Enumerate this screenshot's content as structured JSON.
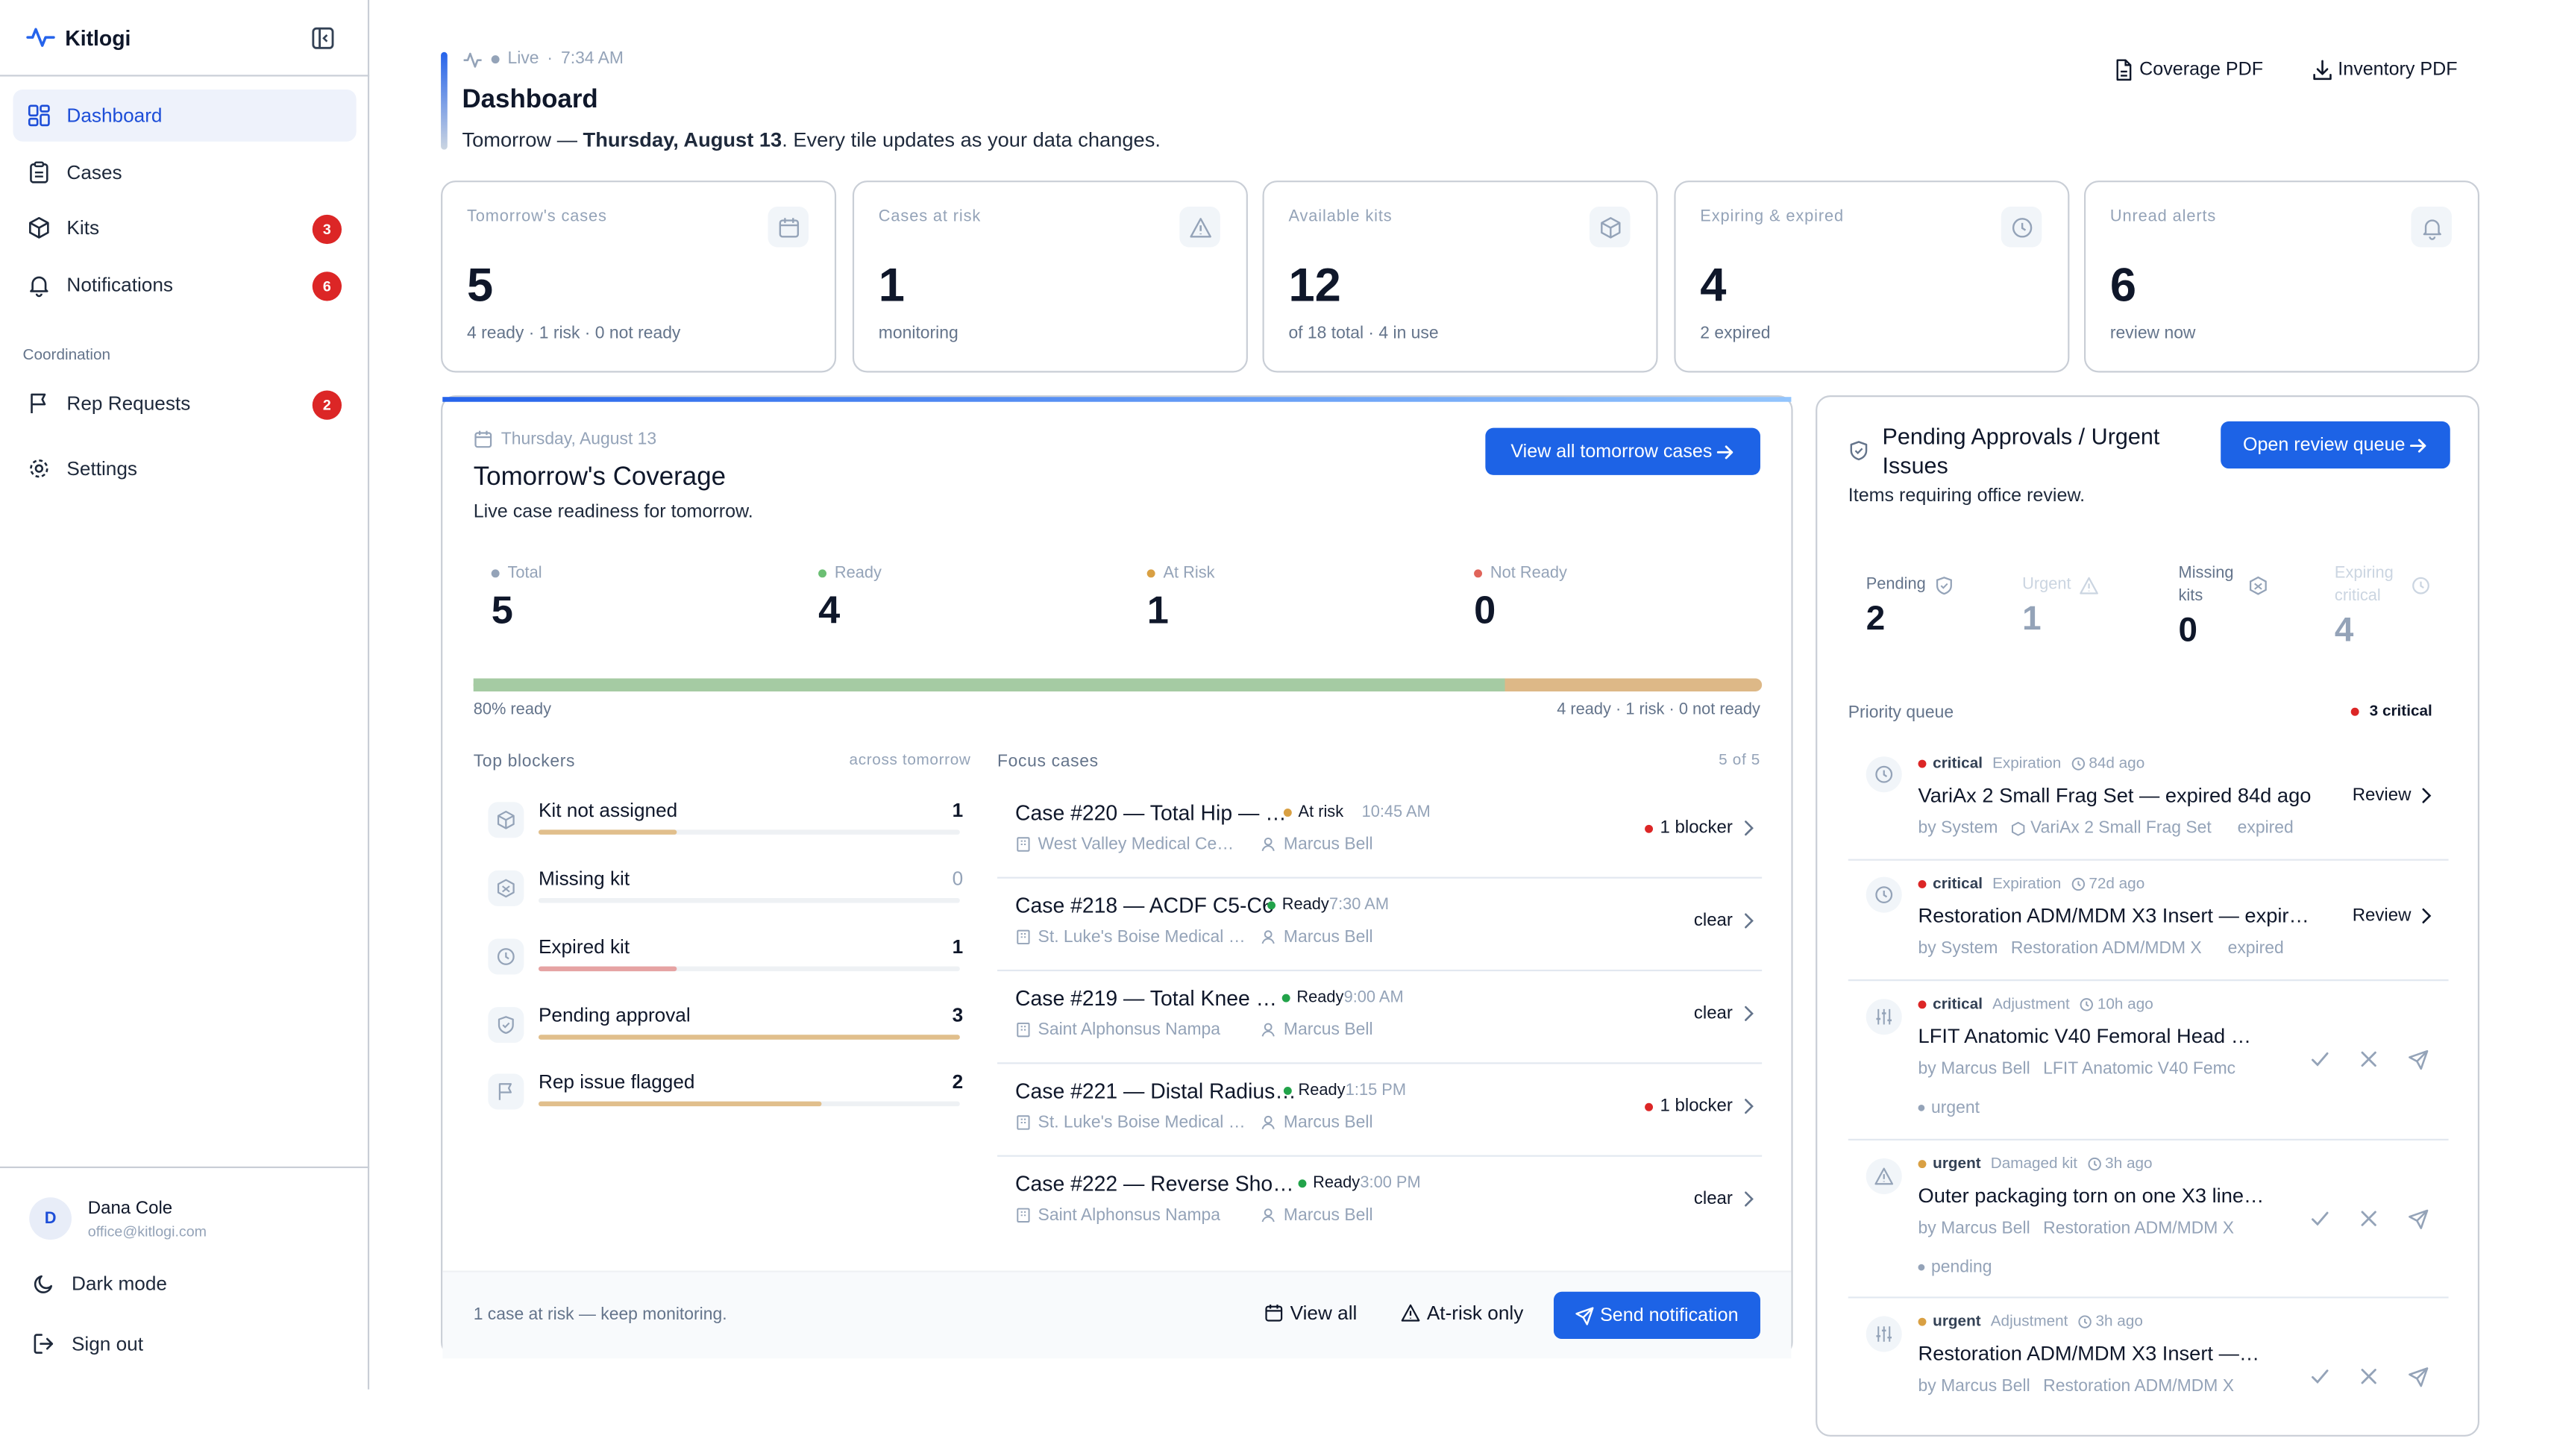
{
  "app": {
    "name": "Kitlogi"
  },
  "sidebar": {
    "items": [
      {
        "label": "Dashboard"
      },
      {
        "label": "Cases"
      },
      {
        "label": "Kits",
        "badge": "3"
      },
      {
        "label": "Notifications",
        "badge": "6"
      },
      {
        "label": "Rep Requests",
        "badge": "2"
      },
      {
        "label": "Settings"
      }
    ],
    "section": "Coordination",
    "user": {
      "initial": "D",
      "name": "Dana Cole",
      "email": "office@kitlogi.com"
    },
    "dark_mode": "Dark mode",
    "sign_out": "Sign out"
  },
  "header": {
    "live": "Live",
    "sep": "·",
    "time": "7:34 AM",
    "title": "Dashboard",
    "subtitle_lead": "Tomorrow — ",
    "subtitle_date": "Thursday, August 13",
    "subtitle_tail": ". Every tile updates as your data changes.",
    "coverage_pdf": "Coverage PDF",
    "inventory_pdf": "Inventory PDF"
  },
  "kpis": [
    {
      "label": "Tomorrow's cases",
      "value": "5",
      "sub": "4 ready · 1 risk · 0 not ready",
      "icon": "calendar-icon"
    },
    {
      "label": "Cases at risk",
      "value": "1",
      "sub": "monitoring",
      "icon": "warning-icon"
    },
    {
      "label": "Available kits",
      "value": "12",
      "sub": "of 18 total · 4 in use",
      "icon": "package-icon"
    },
    {
      "label": "Expiring & expired",
      "value": "4",
      "sub": "2 expired",
      "icon": "clock-icon"
    },
    {
      "label": "Unread alerts",
      "value": "6",
      "sub": "review now",
      "icon": "bell-icon"
    }
  ],
  "coverage": {
    "date": "Thursday, August 13",
    "title": "Tomorrow's Coverage",
    "subtitle": "Live case readiness for tomorrow.",
    "view_all": "View all tomorrow cases",
    "stats": [
      {
        "label": "Total",
        "value": "5",
        "color": "#94a3b8"
      },
      {
        "label": "Ready",
        "value": "4",
        "color": "#6bbf73"
      },
      {
        "label": "At Risk",
        "value": "1",
        "color": "#d9a043"
      },
      {
        "label": "Not Ready",
        "value": "0",
        "color": "#e0645a"
      }
    ],
    "ready_fraction": 0.8,
    "ready_label": "80% ready",
    "breakdown": "4 ready · 1 risk · 0 not ready",
    "blockers_title": "Top blockers",
    "blockers_scope": "across tomorrow",
    "blockers": [
      {
        "label": "Kit not assigned",
        "count": "1",
        "fraction": 0.33,
        "color": "#e1bf8c",
        "icon": "package-icon"
      },
      {
        "label": "Missing kit",
        "count": "0",
        "fraction": 0,
        "color": "#e1bf8c",
        "icon": "package-x-icon"
      },
      {
        "label": "Expired kit",
        "count": "1",
        "fraction": 0.33,
        "color": "#e6a3a3",
        "icon": "clock-icon"
      },
      {
        "label": "Pending approval",
        "count": "3",
        "fraction": 1,
        "color": "#e1bf8c",
        "icon": "shield-icon"
      },
      {
        "label": "Rep issue flagged",
        "count": "2",
        "fraction": 0.67,
        "color": "#e1bf8c",
        "icon": "flag-icon"
      }
    ],
    "focus_title": "Focus cases",
    "focus_count": "5 of 5",
    "cases": [
      {
        "name": "Case #220 — Total Hip — …",
        "status": "At risk",
        "status_color": "#d9a043",
        "time": "10:45 AM",
        "location": "West Valley Medical Ce…",
        "rep": "Marcus Bell",
        "right": "1 blocker",
        "blocker": true
      },
      {
        "name": "Case #218 — ACDF C5-C6",
        "status": "Ready",
        "status_color": "#22a34a",
        "time": "7:30 AM",
        "location": "St. Luke's Boise Medical …",
        "rep": "Marcus Bell",
        "right": "clear",
        "blocker": false
      },
      {
        "name": "Case #219 — Total Knee …",
        "status": "Ready",
        "status_color": "#22a34a",
        "time": "9:00 AM",
        "location": "Saint Alphonsus Nampa",
        "rep": "Marcus Bell",
        "right": "clear",
        "blocker": false
      },
      {
        "name": "Case #221 — Distal Radius…",
        "status": "Ready",
        "status_color": "#22a34a",
        "time": "1:15 PM",
        "location": "St. Luke's Boise Medical …",
        "rep": "Marcus Bell",
        "right": "1 blocker",
        "blocker": true
      },
      {
        "name": "Case #222 — Reverse Sho…",
        "status": "Ready",
        "status_color": "#22a34a",
        "time": "3:00 PM",
        "location": "Saint Alphonsus Nampa",
        "rep": "Marcus Bell",
        "right": "clear",
        "blocker": false
      }
    ],
    "footer_note": "1 case at risk — keep monitoring.",
    "view_all_btn": "View all",
    "at_risk_btn": "At-risk only",
    "send_btn": "Send notification"
  },
  "approvals": {
    "title": "Pending Approvals / Urgent Issues",
    "subtitle": "Items requiring office review.",
    "open_queue": "Open review queue",
    "stats": [
      {
        "label": "Pending",
        "value": "2",
        "icon": "shield-icon"
      },
      {
        "label": "Urgent",
        "value": "1",
        "icon": "warning-icon"
      },
      {
        "label": "Missing kits",
        "value": "0",
        "icon": "package-x-icon"
      },
      {
        "label": "Expiring critical",
        "value": "4",
        "icon": "clock-icon"
      }
    ],
    "queue_title": "Priority queue",
    "critical_count": "3 critical",
    "review_label": "Review",
    "items": [
      {
        "severity": "critical",
        "type": "Expiration",
        "age": "84d ago",
        "title": "VariAx 2 Small Frag Set — expired 84d ago",
        "by": "by System",
        "kit": "VariAx 2 Small Frag Set",
        "tag": "expired",
        "icon": "clock-icon"
      },
      {
        "severity": "critical",
        "type": "Expiration",
        "age": "72d ago",
        "title": "Restoration ADM/MDM X3 Insert — expir…",
        "by": "by System",
        "kit": "Restoration ADM/MDM X",
        "tag": "expired",
        "icon": "clock-icon"
      },
      {
        "severity": "critical",
        "type": "Adjustment",
        "age": "10h ago",
        "title": "LFIT Anatomic V40 Femoral Head …",
        "by": "by Marcus Bell",
        "kit": "LFIT Anatomic V40 Femc",
        "tag": "urgent",
        "icon": "sliders-icon"
      },
      {
        "severity": "urgent",
        "type": "Damaged kit",
        "age": "3h ago",
        "title": "Outer packaging torn on one X3 line…",
        "by": "by Marcus Bell",
        "kit": "Restoration ADM/MDM X",
        "tag": "pending",
        "icon": "warning-icon"
      },
      {
        "severity": "urgent",
        "type": "Adjustment",
        "age": "3h ago",
        "title": "Restoration ADM/MDM X3 Insert —…",
        "by": "by Marcus Bell",
        "kit": "Restoration ADM/MDM X",
        "tag": "",
        "icon": "sliders-icon"
      }
    ]
  },
  "colors": {
    "accent": "#1d63e6",
    "critical": "#dc2626",
    "urgent": "#d9a043",
    "ready": "#22a34a"
  }
}
